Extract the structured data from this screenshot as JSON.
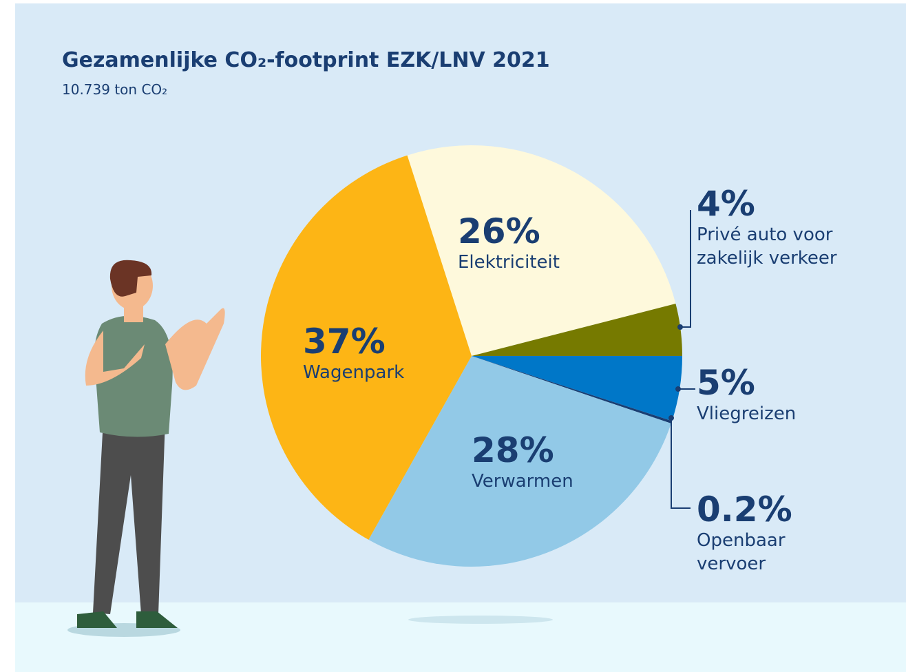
{
  "chart_data": {
    "type": "pie",
    "title": "Gezamenlijke CO₂-footprint EZK/LNV 2021",
    "subtitle": "10.739 ton CO₂",
    "categories": [
      "Elektriciteit",
      "Privé auto voor zakelijk verkeer",
      "Vliegreizen",
      "Openbaar vervoer",
      "Verwarmen",
      "Wagenpark"
    ],
    "values": [
      26,
      4,
      5,
      0.2,
      28,
      37
    ],
    "value_labels": [
      "26%",
      "4%",
      "5%",
      "0.2%",
      "28%",
      "37%"
    ],
    "colors": [
      "#fef9dc",
      "#767a00",
      "#0077c8",
      "#1a3e72",
      "#92c9e7",
      "#fdb515"
    ]
  }
}
